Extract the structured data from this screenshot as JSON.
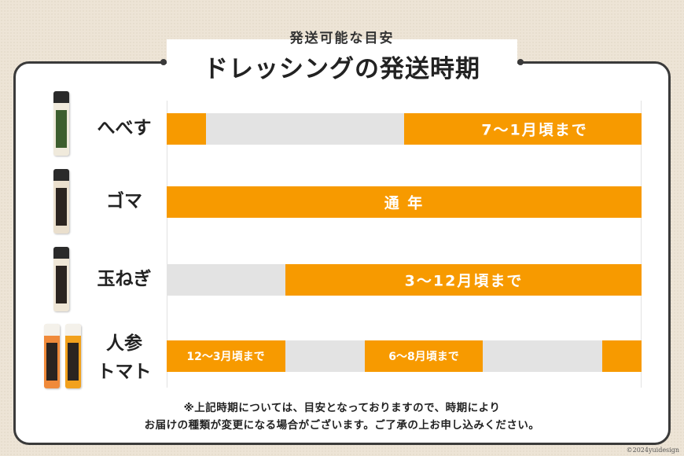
{
  "header": {
    "subtitle": "発送可能な目安",
    "title": "ドレッシングの発送時期"
  },
  "colors": {
    "available": "#f79a00",
    "unavailable": "#e3e3e3",
    "frame": "#3a3a3a"
  },
  "rows": [
    {
      "label": "へべす",
      "available_fraction_segments": [
        [
          0,
          0.083
        ],
        [
          0.5,
          1
        ]
      ],
      "segment_labels": [
        "7～1月頃まで"
      ]
    },
    {
      "label": "ゴマ",
      "available_fraction_segments": [
        [
          0,
          1
        ]
      ],
      "segment_labels": [
        "通 年"
      ]
    },
    {
      "label": "玉ねぎ",
      "available_fraction_segments": [
        [
          0.25,
          1
        ]
      ],
      "segment_labels": [
        "3～12月頃まで"
      ]
    },
    {
      "label_line1": "人参",
      "label_line2": "トマト",
      "available_fraction_segments": [
        [
          0,
          0.25
        ],
        [
          0.417,
          0.667
        ],
        [
          0.917,
          1
        ]
      ],
      "segment_labels": [
        "12～3月頃まで",
        "6～8月頃まで"
      ]
    }
  ],
  "products": {
    "hebesu_icon": "hebesu-bottle-icon",
    "goma_icon": "goma-bottle-icon",
    "onion_icon": "onion-bottle-icon",
    "carrot_icon": "carrot-bottle-icon",
    "tomato_icon": "tomato-bottle-icon"
  },
  "note": {
    "line1": "※上記時期については、目安となっておりますので、時期により",
    "line2": "お届けの種類が変更になる場合がございます。ご了承の上お申し込みください。"
  },
  "copyright": "©2024yuidesign"
}
